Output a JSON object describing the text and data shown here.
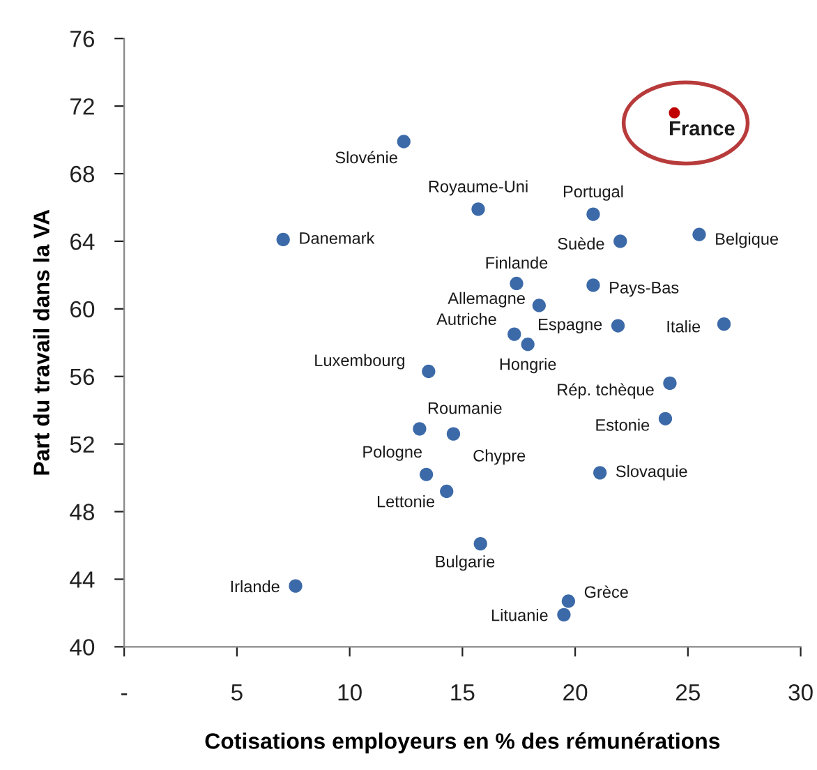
{
  "chart_data": {
    "type": "scatter",
    "xlabel": "Cotisations employeurs en % des rémunérations",
    "ylabel": "Part du travail dans la VA",
    "x": [
      24.4,
      12.4,
      15.7,
      20.8,
      7.05,
      22.0,
      25.5,
      17.4,
      20.8,
      18.4,
      21.9,
      26.6,
      17.3,
      17.9,
      13.5,
      24.2,
      24.0,
      13.1,
      14.6,
      13.4,
      14.3,
      21.1,
      15.8,
      7.6,
      19.7,
      19.5
    ],
    "values": [
      71.6,
      69.9,
      65.9,
      65.6,
      64.1,
      64.0,
      64.4,
      61.5,
      61.4,
      60.2,
      59.0,
      59.1,
      58.5,
      57.9,
      56.3,
      55.6,
      53.5,
      52.9,
      52.6,
      50.2,
      49.2,
      50.3,
      46.1,
      43.6,
      42.7,
      41.9
    ],
    "value_labels": [
      "France",
      "Slovénie",
      "Royaume-Uni",
      "Portugal",
      "Danemark",
      "Suède",
      "Belgique",
      "Finlande",
      "Pays-Bas",
      "Allemagne",
      "Espagne",
      "Italie",
      "Autriche",
      "Hongrie",
      "Luxembourg",
      "Rép. tchèque",
      "Estonie",
      "Roumanie",
      "Chypre",
      "Pologne",
      "Lettonie",
      "Slovaquie",
      "Bulgarie",
      "Irlande",
      "Grèce",
      "Lituanie"
    ],
    "color": "#3c6aa8",
    "colors": [
      "#c00000",
      "#3c6aa8",
      "#3c6aa8",
      "#3c6aa8",
      "#3c6aa8",
      "#3c6aa8",
      "#3c6aa8",
      "#3c6aa8",
      "#3c6aa8",
      "#3c6aa8",
      "#3c6aa8",
      "#3c6aa8",
      "#3c6aa8",
      "#3c6aa8",
      "#3c6aa8",
      "#3c6aa8",
      "#3c6aa8",
      "#3c6aa8",
      "#3c6aa8",
      "#3c6aa8",
      "#3c6aa8",
      "#3c6aa8",
      "#3c6aa8",
      "#3c6aa8",
      "#3c6aa8",
      "#3c6aa8"
    ],
    "marker": "circle",
    "xlim": [
      0,
      30
    ],
    "xticks": [
      {
        "value": 0,
        "label": "-"
      },
      5,
      10,
      15,
      20,
      25,
      30
    ],
    "ylim": [
      40,
      76
    ],
    "yticks": [
      40,
      44,
      48,
      52,
      56,
      60,
      64,
      68,
      72,
      76
    ],
    "grid": false,
    "legend": false
  }
}
